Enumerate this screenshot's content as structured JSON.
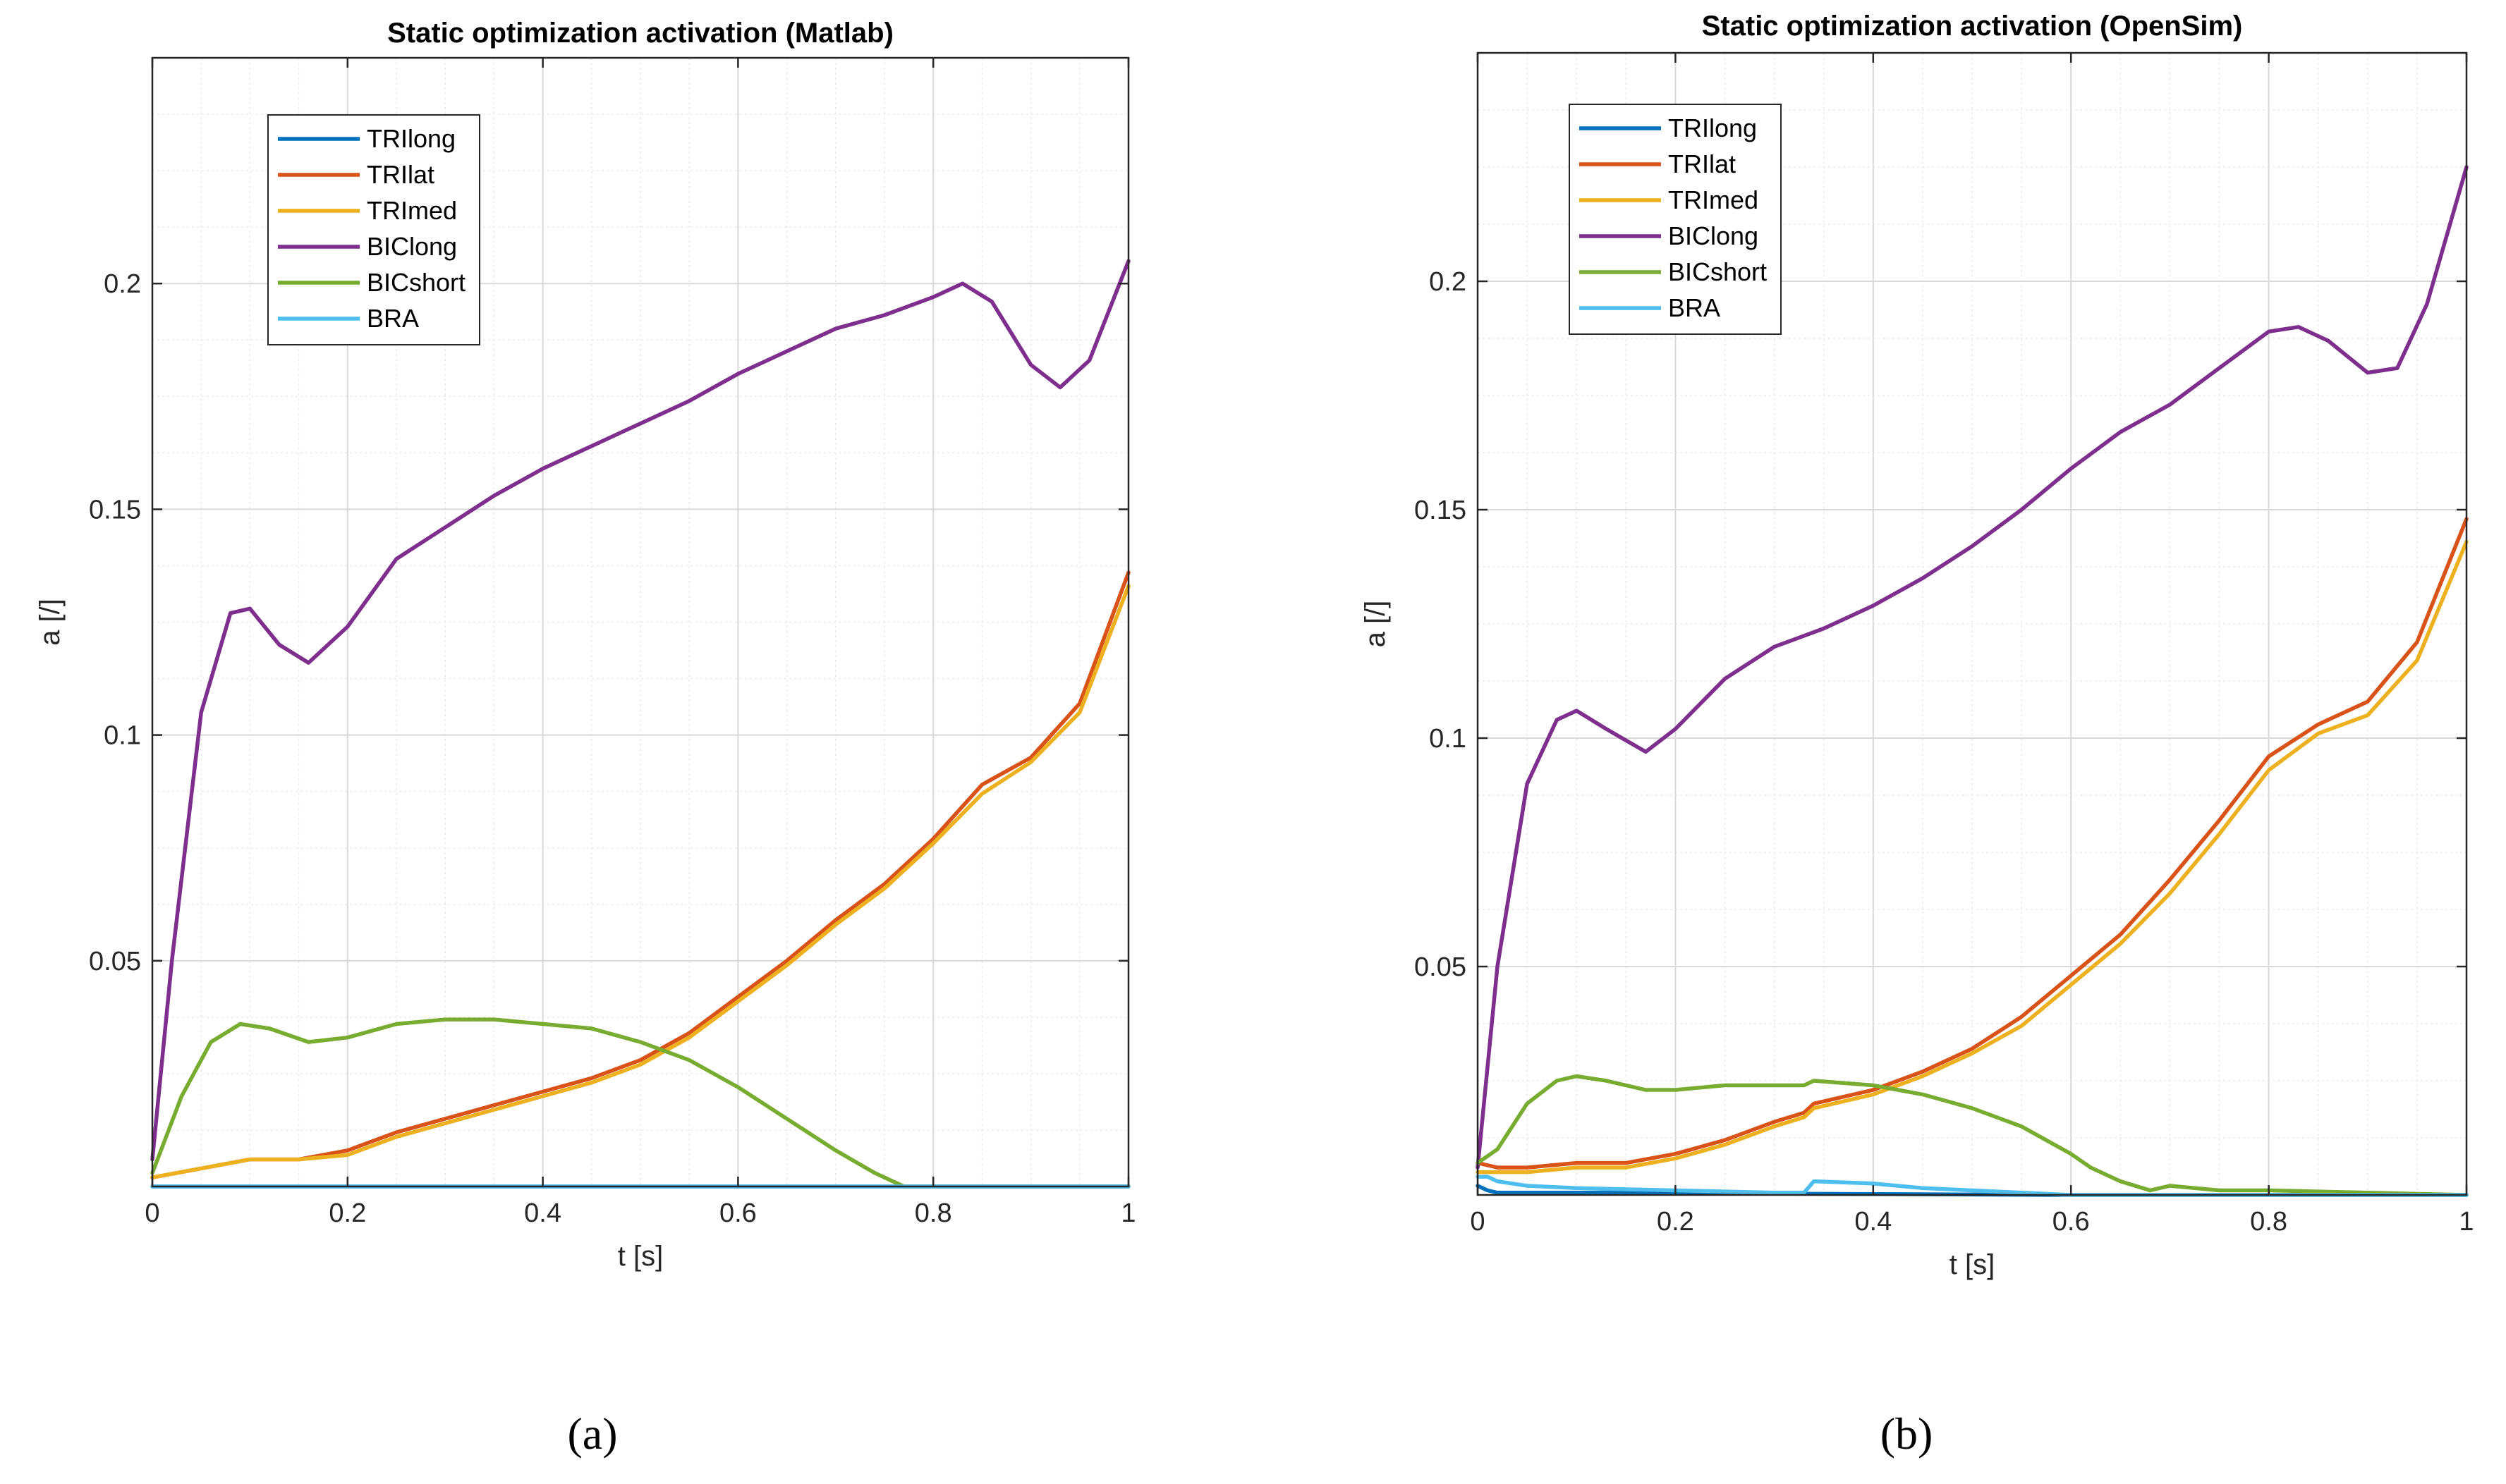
{
  "chart_data": [
    {
      "type": "line",
      "title": "Static optimization activation (Matlab)",
      "xlabel": "t [s]",
      "ylabel": "a [/]",
      "xlim": [
        0,
        1
      ],
      "ylim": [
        0,
        0.25
      ],
      "xticks": [
        0,
        0.2,
        0.4,
        0.6,
        0.8,
        1
      ],
      "xtick_labels": [
        "0",
        "0.2",
        "0.4",
        "0.6",
        "0.8",
        "1"
      ],
      "yticks": [
        0.05,
        0.1,
        0.15,
        0.2
      ],
      "ytick_labels": [
        "0.05",
        "0.1",
        "0.15",
        "0.2"
      ],
      "grid": true,
      "legend_location": "top-left",
      "caption": "(a)",
      "series": [
        {
          "name": "TRIlong",
          "color": "#0072BD",
          "x": [
            0,
            0.2,
            0.4,
            0.6,
            0.8,
            1
          ],
          "y": [
            0.0,
            0.0,
            0.0,
            0.0,
            0.0,
            0.0
          ]
        },
        {
          "name": "TRIlat",
          "color": "#D95319",
          "x": [
            0,
            0.05,
            0.1,
            0.15,
            0.2,
            0.25,
            0.3,
            0.35,
            0.4,
            0.45,
            0.5,
            0.55,
            0.6,
            0.65,
            0.7,
            0.75,
            0.8,
            0.85,
            0.9,
            0.95,
            1.0
          ],
          "y": [
            0.002,
            0.004,
            0.006,
            0.006,
            0.008,
            0.012,
            0.015,
            0.018,
            0.021,
            0.024,
            0.028,
            0.034,
            0.042,
            0.05,
            0.059,
            0.067,
            0.077,
            0.089,
            0.095,
            0.107,
            0.136
          ]
        },
        {
          "name": "TRImed",
          "color": "#EDB120",
          "x": [
            0,
            0.05,
            0.1,
            0.15,
            0.2,
            0.25,
            0.3,
            0.35,
            0.4,
            0.45,
            0.5,
            0.55,
            0.6,
            0.65,
            0.7,
            0.75,
            0.8,
            0.85,
            0.9,
            0.95,
            1.0
          ],
          "y": [
            0.002,
            0.004,
            0.006,
            0.006,
            0.007,
            0.011,
            0.014,
            0.017,
            0.02,
            0.023,
            0.027,
            0.033,
            0.041,
            0.049,
            0.058,
            0.066,
            0.076,
            0.087,
            0.094,
            0.105,
            0.133
          ]
        },
        {
          "name": "BIClong",
          "color": "#7E2F8E",
          "x": [
            0,
            0.02,
            0.05,
            0.08,
            0.1,
            0.13,
            0.16,
            0.2,
            0.25,
            0.3,
            0.35,
            0.4,
            0.45,
            0.5,
            0.55,
            0.6,
            0.65,
            0.7,
            0.75,
            0.8,
            0.83,
            0.86,
            0.9,
            0.93,
            0.96,
            1.0
          ],
          "y": [
            0.006,
            0.05,
            0.105,
            0.127,
            0.128,
            0.12,
            0.116,
            0.124,
            0.139,
            0.146,
            0.153,
            0.159,
            0.164,
            0.169,
            0.174,
            0.18,
            0.185,
            0.19,
            0.193,
            0.197,
            0.2,
            0.196,
            0.182,
            0.177,
            0.183,
            0.205
          ]
        },
        {
          "name": "BICshort",
          "color": "#77AC30",
          "x": [
            0,
            0.03,
            0.06,
            0.09,
            0.12,
            0.16,
            0.2,
            0.25,
            0.3,
            0.35,
            0.4,
            0.45,
            0.5,
            0.55,
            0.6,
            0.65,
            0.7,
            0.74,
            0.77,
            1.0
          ],
          "y": [
            0.003,
            0.02,
            0.032,
            0.036,
            0.035,
            0.032,
            0.033,
            0.036,
            0.037,
            0.037,
            0.036,
            0.035,
            0.032,
            0.028,
            0.022,
            0.015,
            0.008,
            0.003,
            0.0,
            0.0
          ]
        },
        {
          "name": "BRA",
          "color": "#4DBEEE",
          "x": [
            0,
            0.2,
            0.4,
            0.6,
            0.8,
            1
          ],
          "y": [
            0.0,
            0.0,
            0.0,
            0.0,
            0.0,
            0.0
          ]
        }
      ]
    },
    {
      "type": "line",
      "title": "Static optimization activation (OpenSim)",
      "xlabel": "t [s]",
      "ylabel": "a [/]",
      "xlim": [
        0,
        1
      ],
      "ylim": [
        0,
        0.25
      ],
      "xticks": [
        0,
        0.2,
        0.4,
        0.6,
        0.8,
        1
      ],
      "xtick_labels": [
        "0",
        "0.2",
        "0.4",
        "0.6",
        "0.8",
        "1"
      ],
      "yticks": [
        0.05,
        0.1,
        0.15,
        0.2
      ],
      "ytick_labels": [
        "0.05",
        "0.1",
        "0.15",
        "0.2"
      ],
      "grid": true,
      "legend_location": "top-left",
      "caption": "(b)",
      "series": [
        {
          "name": "TRIlong",
          "color": "#0072BD",
          "x": [
            0,
            0.01,
            0.02,
            0.1,
            0.2,
            0.3,
            0.4,
            0.5,
            0.6,
            1.0
          ],
          "y": [
            0.002,
            0.001,
            0.0005,
            0.0005,
            0.0005,
            0.0003,
            0.0002,
            0.0001,
            0.0,
            0.0
          ]
        },
        {
          "name": "TRIlat",
          "color": "#D95319",
          "x": [
            0,
            0.02,
            0.05,
            0.1,
            0.15,
            0.2,
            0.25,
            0.3,
            0.33,
            0.34,
            0.4,
            0.45,
            0.5,
            0.55,
            0.6,
            0.65,
            0.7,
            0.75,
            0.8,
            0.85,
            0.9,
            0.95,
            1.0
          ],
          "y": [
            0.007,
            0.006,
            0.006,
            0.007,
            0.007,
            0.009,
            0.012,
            0.016,
            0.018,
            0.02,
            0.023,
            0.027,
            0.032,
            0.039,
            0.048,
            0.057,
            0.069,
            0.082,
            0.096,
            0.103,
            0.108,
            0.121,
            0.148
          ]
        },
        {
          "name": "TRImed",
          "color": "#EDB120",
          "x": [
            0,
            0.02,
            0.05,
            0.1,
            0.15,
            0.2,
            0.25,
            0.3,
            0.33,
            0.34,
            0.4,
            0.45,
            0.5,
            0.55,
            0.6,
            0.65,
            0.7,
            0.75,
            0.8,
            0.85,
            0.9,
            0.95,
            1.0
          ],
          "y": [
            0.005,
            0.005,
            0.005,
            0.006,
            0.006,
            0.008,
            0.011,
            0.015,
            0.017,
            0.019,
            0.022,
            0.026,
            0.031,
            0.037,
            0.046,
            0.055,
            0.066,
            0.079,
            0.093,
            0.101,
            0.105,
            0.117,
            0.143
          ]
        },
        {
          "name": "BIClong",
          "color": "#7E2F8E",
          "x": [
            0,
            0.02,
            0.05,
            0.08,
            0.1,
            0.13,
            0.17,
            0.2,
            0.25,
            0.3,
            0.35,
            0.4,
            0.45,
            0.5,
            0.55,
            0.6,
            0.65,
            0.7,
            0.75,
            0.8,
            0.83,
            0.86,
            0.9,
            0.93,
            0.96,
            1.0
          ],
          "y": [
            0.006,
            0.05,
            0.09,
            0.104,
            0.106,
            0.102,
            0.097,
            0.102,
            0.113,
            0.12,
            0.124,
            0.129,
            0.135,
            0.142,
            0.15,
            0.159,
            0.167,
            0.173,
            0.181,
            0.189,
            0.19,
            0.187,
            0.18,
            0.181,
            0.195,
            0.225
          ]
        },
        {
          "name": "BICshort",
          "color": "#77AC30",
          "x": [
            0,
            0.02,
            0.05,
            0.08,
            0.1,
            0.13,
            0.17,
            0.2,
            0.25,
            0.3,
            0.33,
            0.34,
            0.4,
            0.45,
            0.5,
            0.55,
            0.6,
            0.62,
            0.65,
            0.68,
            0.7,
            0.75,
            0.8,
            0.9,
            1.0
          ],
          "y": [
            0.007,
            0.01,
            0.02,
            0.025,
            0.026,
            0.025,
            0.023,
            0.023,
            0.024,
            0.024,
            0.024,
            0.025,
            0.024,
            0.022,
            0.019,
            0.015,
            0.009,
            0.006,
            0.003,
            0.001,
            0.002,
            0.001,
            0.001,
            0.0005,
            0.0
          ]
        },
        {
          "name": "BRA",
          "color": "#4DBEEE",
          "x": [
            0,
            0.01,
            0.02,
            0.05,
            0.1,
            0.2,
            0.3,
            0.33,
            0.34,
            0.4,
            0.45,
            0.5,
            0.55,
            0.6,
            1.0
          ],
          "y": [
            0.004,
            0.004,
            0.003,
            0.002,
            0.0015,
            0.001,
            0.0005,
            0.0005,
            0.003,
            0.0025,
            0.0015,
            0.001,
            0.0005,
            0.0,
            0.0
          ]
        }
      ]
    }
  ]
}
